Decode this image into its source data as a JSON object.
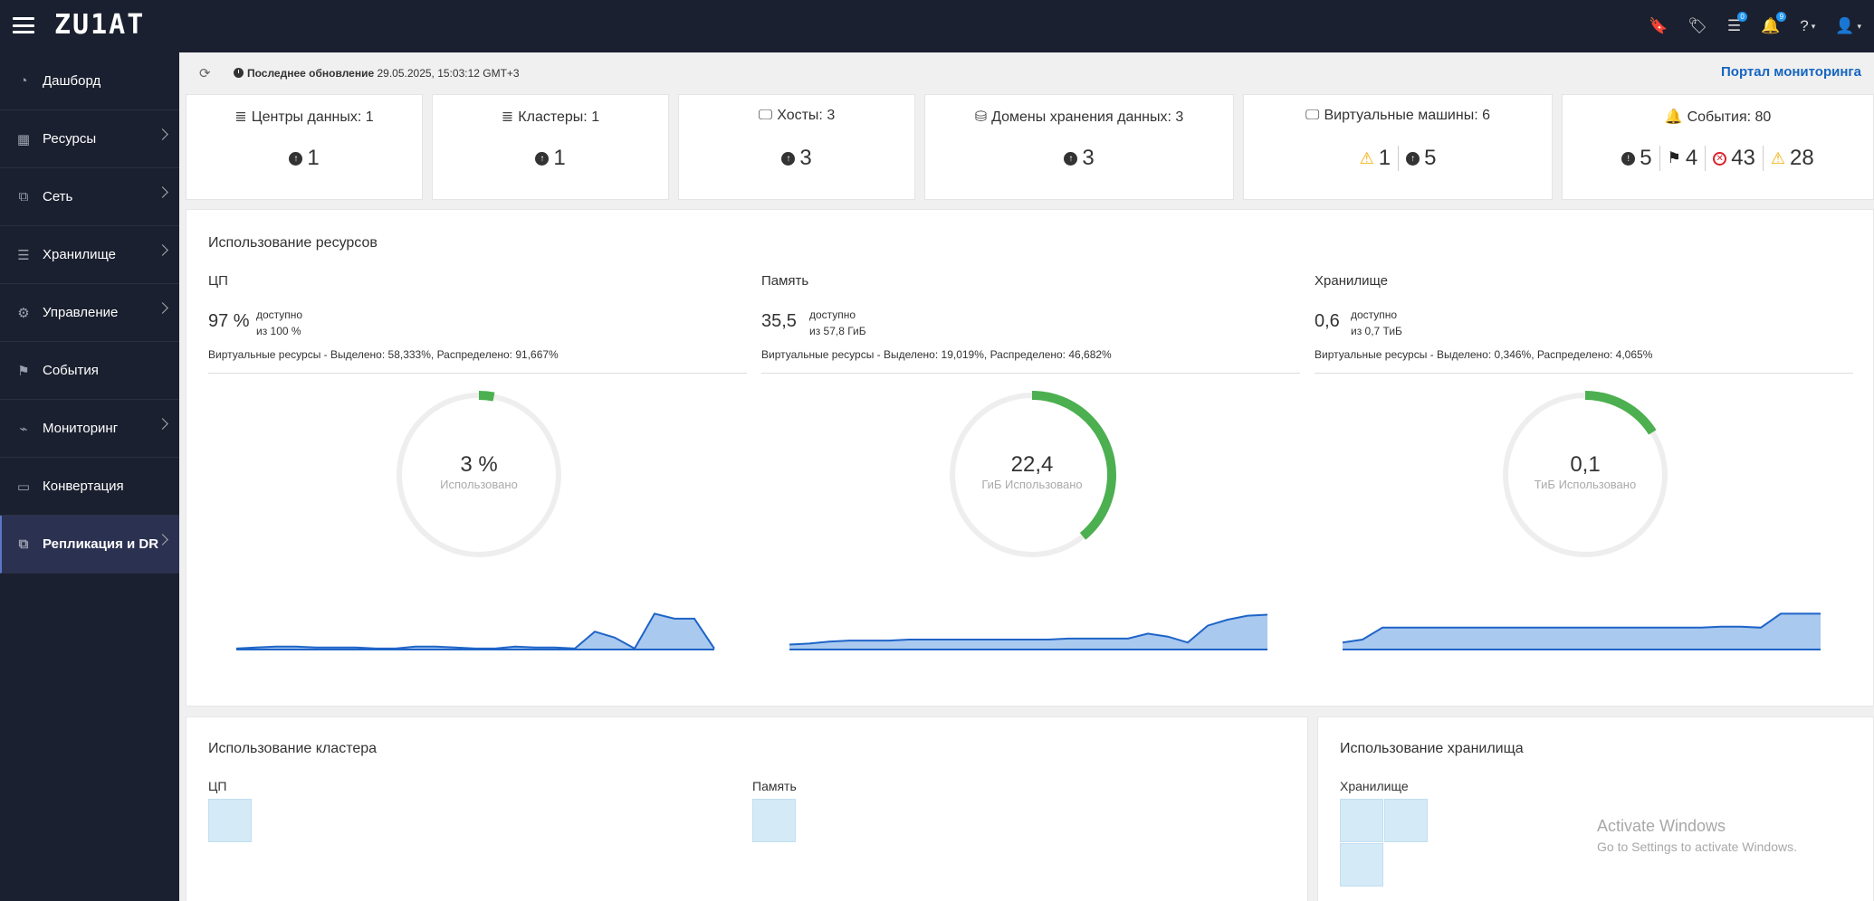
{
  "header": {
    "logo": "ZU1AT",
    "icons": [
      {
        "name": "bookmark-icon",
        "glyph": "🔖",
        "badge": ""
      },
      {
        "name": "tags-icon",
        "glyph": "🏷",
        "badge": ""
      },
      {
        "name": "tasks-icon",
        "glyph": "☰",
        "badge": "0"
      },
      {
        "name": "bell-icon",
        "glyph": "🔔",
        "badge": "9"
      },
      {
        "name": "help-icon",
        "glyph": "?",
        "badge": ""
      },
      {
        "name": "user-icon",
        "glyph": "👤",
        "badge": ""
      }
    ]
  },
  "sidebar": {
    "items": [
      {
        "label": "Дашборд",
        "icon": "dashboard-icon",
        "glyph": "◔",
        "has_children": false,
        "active": false
      },
      {
        "label": "Ресурсы",
        "icon": "chip-icon",
        "glyph": "▦",
        "has_children": true,
        "active": false
      },
      {
        "label": "Сеть",
        "icon": "network-icon",
        "glyph": "⧉",
        "has_children": true,
        "active": false
      },
      {
        "label": "Хранилище",
        "icon": "database-icon",
        "glyph": "☰",
        "has_children": true,
        "active": false
      },
      {
        "label": "Управление",
        "icon": "gear-icon",
        "glyph": "⚙",
        "has_children": true,
        "active": false
      },
      {
        "label": "События",
        "icon": "flag-icon",
        "glyph": "⚑",
        "has_children": false,
        "active": false
      },
      {
        "label": "Мониторинг",
        "icon": "monitoring-icon",
        "glyph": "⌁",
        "has_children": true,
        "active": false
      },
      {
        "label": "Конвертация",
        "icon": "convert-icon",
        "glyph": "▭",
        "has_children": false,
        "active": false
      },
      {
        "label": "Репликация и DR",
        "icon": "replication-icon",
        "glyph": "⧉",
        "has_children": true,
        "active": true
      }
    ]
  },
  "update": {
    "label": "Последнее обновление",
    "value": "29.05.2025, 15:03:12 GMT+3",
    "portal_link": "Портал мониторинга"
  },
  "cards": [
    {
      "title": "Центры данных: 1",
      "icon_glyph": "≣",
      "icon": "datacenter-icon",
      "values": [
        {
          "kind": "up",
          "value": "1"
        }
      ]
    },
    {
      "title": "Кластеры: 1",
      "icon_glyph": "≣",
      "icon": "cluster-icon",
      "values": [
        {
          "kind": "up",
          "value": "1"
        }
      ]
    },
    {
      "title": "Хосты: 3",
      "icon_glyph": "🖵",
      "icon": "host-icon",
      "values": [
        {
          "kind": "up",
          "value": "3"
        }
      ]
    },
    {
      "title": "Домены хранения данных: 3",
      "icon_glyph": "⛁",
      "icon": "storage-domain-icon",
      "values": [
        {
          "kind": "up",
          "value": "3"
        }
      ]
    },
    {
      "title": "Виртуальные машины: 6",
      "icon_glyph": "🖵",
      "icon": "vm-icon",
      "values": [
        {
          "kind": "warn",
          "value": "1"
        },
        {
          "kind": "up",
          "value": "5"
        }
      ]
    },
    {
      "title": "События: 80",
      "icon_glyph": "🔔",
      "icon": "events-bell-icon",
      "values": [
        {
          "kind": "alert",
          "value": "5"
        },
        {
          "kind": "flag",
          "value": "4"
        },
        {
          "kind": "error",
          "value": "43"
        },
        {
          "kind": "warn",
          "value": "28"
        }
      ]
    }
  ],
  "usage": {
    "title": "Использование ресурсов",
    "columns": [
      {
        "title": "ЦП",
        "big": "97 %",
        "avail_label": "доступно",
        "avail_of": "из 100 %",
        "virtual": "Виртуальные ресурсы - Выделено: 58,333%, Распределено: 91,667%",
        "donut_value": "3 %",
        "donut_label": "Использовано",
        "used_fraction": 0.03,
        "spark": [
          1,
          2,
          3,
          3,
          2,
          2,
          2,
          1,
          1,
          3,
          3,
          2,
          1,
          1,
          3,
          2,
          2,
          1,
          18,
          12,
          1,
          36,
          31,
          31,
          1
        ]
      },
      {
        "title": "Память",
        "big": "35,5",
        "avail_label": "доступно",
        "avail_of": "из 57,8 ГиБ",
        "virtual": "Виртуальные ресурсы - Выделено: 19,019%, Распределено: 46,682%",
        "donut_value": "22,4",
        "donut_label": "ГиБ Использовано",
        "used_fraction": 0.39,
        "spark": [
          5,
          6,
          8,
          9,
          9,
          9,
          10,
          10,
          10,
          10,
          10,
          10,
          10,
          10,
          11,
          11,
          11,
          11,
          16,
          13,
          7,
          24,
          30,
          34,
          35
        ]
      },
      {
        "title": "Хранилище",
        "big": "0,6",
        "avail_label": "доступно",
        "avail_of": "из 0,7 ТиБ",
        "virtual": "Виртуальные ресурсы - Выделено: 0,346%, Распределено: 4,065%",
        "donut_value": "0,1",
        "donut_label": "ТиБ Использовано",
        "used_fraction": 0.16,
        "spark": [
          7,
          10,
          22,
          22,
          22,
          22,
          22,
          22,
          22,
          22,
          22,
          22,
          22,
          22,
          22,
          22,
          22,
          22,
          22,
          23,
          23,
          22,
          36,
          36,
          36
        ]
      }
    ]
  },
  "cluster": {
    "title": "Использование кластера",
    "cpu": "ЦП",
    "memory": "Память"
  },
  "storage_usage": {
    "title": "Использование хранилища",
    "storage": "Хранилище"
  },
  "watermark": {
    "line1": "Activate Windows",
    "line2": "Go to Settings to activate Windows."
  },
  "colors": {
    "accent_green": "#4caf50",
    "spark_line": "#1e64c8",
    "spark_fill": "#a9c9ef",
    "link": "#1565c0"
  }
}
